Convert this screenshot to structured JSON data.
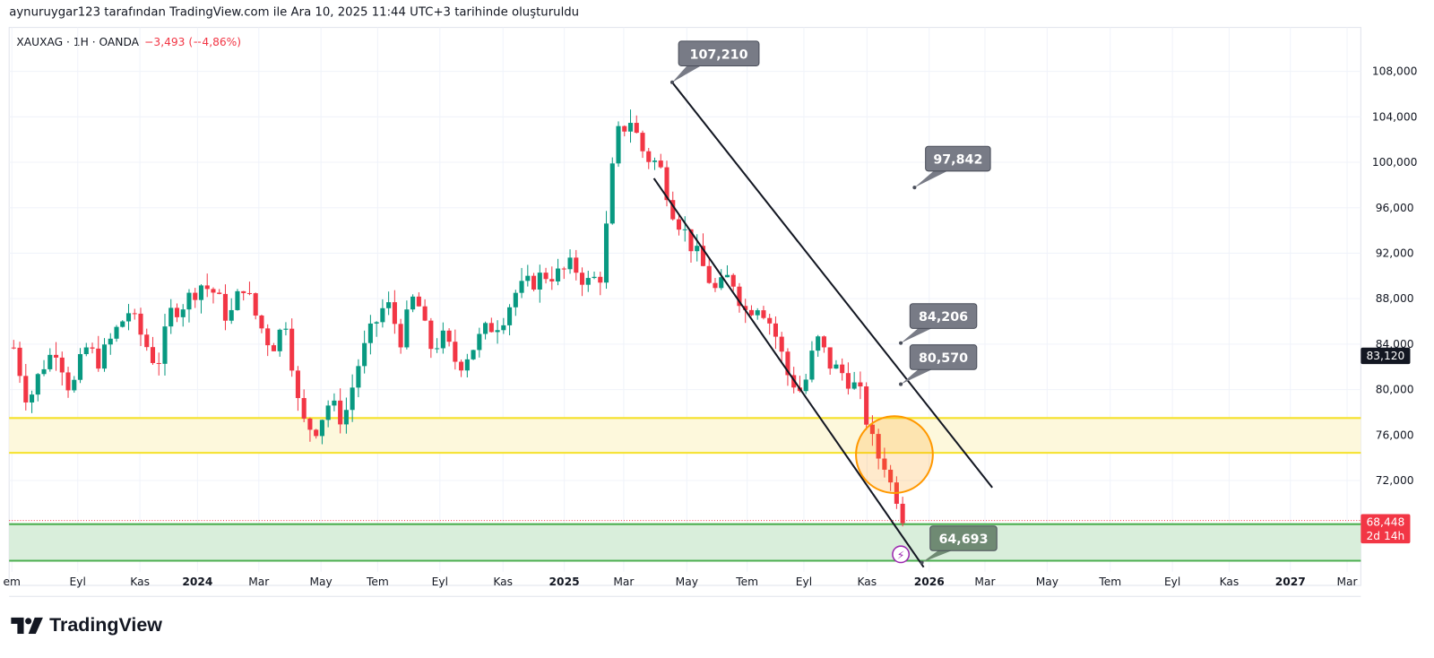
{
  "header": {
    "caption": "aynuruygar123 tarafından TradingView.com ile Ara 10, 2025 11:44 UTC+3 tarihinde oluşturuldu"
  },
  "symbol": {
    "name": "XAUXAG · 1H · OANDA",
    "change": "−3,493 (−4,86%)"
  },
  "brand": {
    "name": "TradingView"
  },
  "colors": {
    "up": "#089981",
    "down": "#f23645",
    "yellow_zone": "#f5e12a",
    "green_zone": "#4caf50",
    "circle": "#ff9800"
  },
  "chart_data": {
    "type": "candlestick",
    "price_ticks": [
      "108,000",
      "104,000",
      "100,000",
      "96,000",
      "92,000",
      "88,000",
      "84,000",
      "80,000",
      "76,000",
      "72,000"
    ],
    "price_tick_values": [
      108000,
      104000,
      100000,
      96000,
      92000,
      88000,
      84000,
      80000,
      76000,
      72000
    ],
    "time_ticks": [
      "em",
      "Eyl",
      "Kas",
      "2024",
      "Mar",
      "May",
      "Tem",
      "Eyl",
      "Kas",
      "2025",
      "Mar",
      "May",
      "Tem",
      "Eyl",
      "Kas",
      "2026",
      "Mar",
      "May",
      "Tem",
      "Eyl",
      "Kas",
      "2027",
      "Mar"
    ],
    "close_path": [
      83700,
      78870,
      82090,
      83700,
      79670,
      83700,
      82490,
      84900,
      86910,
      84500,
      82090,
      86910,
      87720,
      89330,
      88520,
      86110,
      89330,
      86110,
      83700,
      86110,
      77260,
      76450,
      78870,
      77260,
      82090,
      85300,
      87720,
      84500,
      88520,
      83700,
      84500,
      82090,
      83700,
      85300,
      86110,
      88520,
      89330,
      90130,
      90130,
      90940,
      89330,
      90130,
      102200,
      103810,
      100600,
      99790,
      95770,
      93350,
      90940,
      88520,
      90130,
      86910,
      87720,
      85300,
      81280,
      79670,
      84500,
      82090,
      81280,
      79670,
      74840,
      72430,
      68400
    ],
    "last_price_label": "83,120",
    "current_price_label": "68,448",
    "countdown": "2d 14h",
    "annotations": [
      "107,210",
      "97,842",
      "84,206",
      "80,570",
      "64,693"
    ],
    "zones": [
      {
        "name": "yellow",
        "from": 74800,
        "to": 77800
      },
      {
        "name": "green",
        "from": 64693,
        "to": 68500
      }
    ]
  }
}
